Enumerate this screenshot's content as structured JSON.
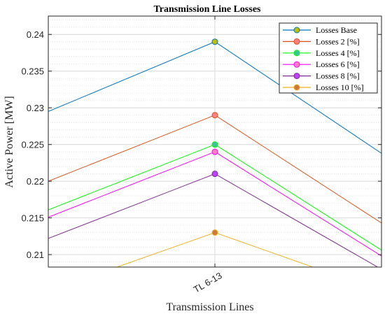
{
  "chart_data": {
    "type": "line",
    "title": "Transmission Line Losses",
    "xlabel": "Transmission Lines",
    "ylabel": "Active Power [MW]",
    "categories": [
      "TL 6-13"
    ],
    "ylim": [
      0.2083,
      0.2425
    ],
    "yticks": [
      0.21,
      0.215,
      0.22,
      0.225,
      0.23,
      0.235,
      0.24
    ],
    "ytick_labels": [
      "0.21",
      "0.215",
      "0.22",
      "0.225",
      "0.23",
      "0.235",
      "0.24"
    ],
    "grid": true,
    "legend_position": "top-right",
    "series": [
      {
        "name": "Losses Base",
        "color": "#0072BD",
        "marker": "#BFBF00",
        "left": 0.2295,
        "value": 0.239,
        "right": 0.2238
      },
      {
        "name": "Losses  2 [%]",
        "color": "#D95319",
        "marker": "#FF8080",
        "left": 0.22,
        "value": 0.229,
        "right": 0.2143
      },
      {
        "name": "Losses  4 [%]",
        "color": "#00FF00",
        "marker": "#3CC39B",
        "left": 0.2161,
        "value": 0.225,
        "right": 0.2106
      },
      {
        "name": "Losses  6 [%]",
        "color": "#FF00FF",
        "marker": "#FF80C0",
        "left": 0.2151,
        "value": 0.224,
        "right": 0.2098
      },
      {
        "name": "Losses  8 [%]",
        "color": "#7E2F8E",
        "marker": "#C040FF",
        "left": 0.2122,
        "value": 0.221,
        "right": 0.208
      },
      {
        "name": "Losses 10 [%]",
        "color": "#EDB120",
        "marker": "#D2773C",
        "left": 0.205,
        "value": 0.213,
        "right": 0.205
      }
    ]
  }
}
